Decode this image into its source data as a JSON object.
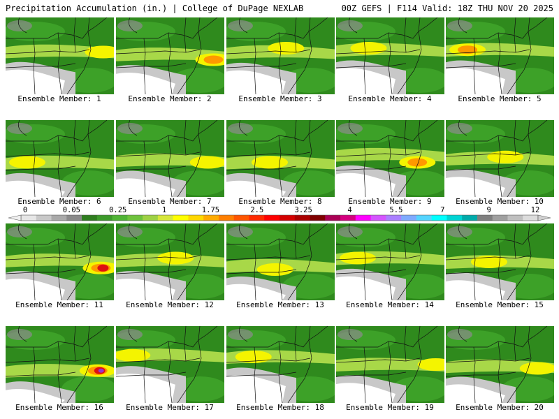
{
  "header": {
    "left": "Precipitation Accumulation (in.) | College of DuPage NEXLAB",
    "right": "00Z GEFS | F114 Valid: 18Z THU NOV 20 2025"
  },
  "caption_prefix": "Ensemble Member: ",
  "members": [
    {
      "n": "1",
      "band_lat": 0.44,
      "hot": [
        0.9,
        0.45
      ],
      "heavy": false
    },
    {
      "n": "2",
      "band_lat": 0.48,
      "hot": [
        0.9,
        0.55
      ],
      "heavy": true
    },
    {
      "n": "3",
      "band_lat": 0.45,
      "hot": [
        0.55,
        0.4
      ],
      "heavy": false
    },
    {
      "n": "4",
      "band_lat": 0.42,
      "hot": [
        0.3,
        0.4
      ],
      "heavy": false
    },
    {
      "n": "5",
      "band_lat": 0.42,
      "hot": [
        0.2,
        0.42
      ],
      "heavy": true
    },
    {
      "n": "6",
      "band_lat": 0.55,
      "hot": [
        0.2,
        0.55
      ],
      "heavy": false
    },
    {
      "n": "7",
      "band_lat": 0.52,
      "hot": [
        0.85,
        0.55
      ],
      "heavy": false
    },
    {
      "n": "8",
      "band_lat": 0.55,
      "hot": [
        0.4,
        0.55
      ],
      "heavy": false
    },
    {
      "n": "9",
      "band_lat": 0.45,
      "hot": [
        0.75,
        0.55
      ],
      "heavy": true
    },
    {
      "n": "10",
      "band_lat": 0.5,
      "hot": [
        0.55,
        0.48
      ],
      "heavy": false
    },
    {
      "n": "11",
      "band_lat": 0.48,
      "hot": [
        0.88,
        0.58
      ],
      "heavy": true
    },
    {
      "n": "12",
      "band_lat": 0.48,
      "hot": [
        0.55,
        0.45
      ],
      "heavy": false
    },
    {
      "n": "13",
      "band_lat": 0.55,
      "hot": [
        0.45,
        0.6
      ],
      "heavy": false
    },
    {
      "n": "14",
      "band_lat": 0.45,
      "hot": [
        0.2,
        0.45
      ],
      "heavy": false
    },
    {
      "n": "15",
      "band_lat": 0.5,
      "hot": [
        0.4,
        0.5
      ],
      "heavy": false
    },
    {
      "n": "16",
      "band_lat": 0.58,
      "hot": [
        0.85,
        0.58
      ],
      "heavy": true
    },
    {
      "n": "17",
      "band_lat": 0.38,
      "hot": [
        0.15,
        0.38
      ],
      "heavy": false
    },
    {
      "n": "18",
      "band_lat": 0.4,
      "hot": [
        0.25,
        0.4
      ],
      "heavy": false
    },
    {
      "n": "19",
      "band_lat": 0.5,
      "hot": [
        0.92,
        0.5
      ],
      "heavy": false
    },
    {
      "n": "20",
      "band_lat": 0.52,
      "hot": [
        0.85,
        0.55
      ],
      "heavy": false
    }
  ],
  "scale": {
    "labels": [
      "0",
      "0.05",
      "0.25",
      "1",
      "1.75",
      "2.5",
      "3.25",
      "4",
      "5.5",
      "7",
      "9",
      "12"
    ],
    "colors": [
      "#e6e6e6",
      "#c8c8c8",
      "#a9a9a9",
      "#8a8a8a",
      "#2f7d1f",
      "#3d9a2b",
      "#4fb335",
      "#6ec23c",
      "#9ed144",
      "#d6e63b",
      "#ffff00",
      "#ffd700",
      "#ffaa00",
      "#ff7f00",
      "#ff5500",
      "#ff2a00",
      "#ff0000",
      "#d40000",
      "#aa0000",
      "#7f0000",
      "#aa0055",
      "#d4007f",
      "#ff00ff",
      "#d455ff",
      "#aa7fff",
      "#7faaff",
      "#55d4ff",
      "#00ffff",
      "#00d4d4",
      "#00aaaa",
      "#7f7f7f",
      "#a0a0a0",
      "#bfbfbf",
      "#dcdcdc"
    ]
  },
  "colors": {
    "land_green": "#2f8a1d",
    "land_green2": "#3fa32a",
    "dry_white": "#ffffff",
    "light_gray": "#c8c8c8",
    "dark_gray": "#8c8c8c",
    "yellow_green": "#a8d848",
    "yellow": "#f4f400",
    "orange": "#ff9900",
    "red": "#dd1111",
    "purple": "#9933cc",
    "border": "#111111"
  }
}
